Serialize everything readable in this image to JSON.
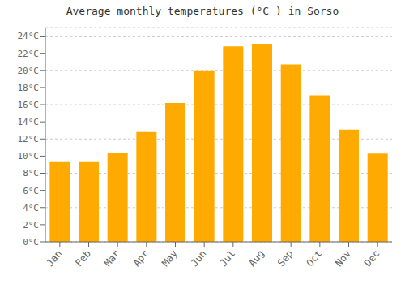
{
  "chart_data": {
    "type": "bar",
    "title": "Average monthly temperatures (°C ) in Sorso",
    "categories": [
      "Jan",
      "Feb",
      "Mar",
      "Apr",
      "May",
      "Jun",
      "Jul",
      "Aug",
      "Sep",
      "Oct",
      "Nov",
      "Dec"
    ],
    "values": [
      9.3,
      9.3,
      10.4,
      12.8,
      16.2,
      20.0,
      22.8,
      23.1,
      20.7,
      17.1,
      13.1,
      10.3
    ],
    "color": "#FFAA00",
    "ylim": [
      0,
      25
    ],
    "yticks": [
      {
        "value": 0,
        "label": "0°C"
      },
      {
        "value": 2,
        "label": "2°C"
      },
      {
        "value": 4,
        "label": "4°C"
      },
      {
        "value": 6,
        "label": "6°C"
      },
      {
        "value": 8,
        "label": "8°C"
      },
      {
        "value": 10,
        "label": "10°C"
      },
      {
        "value": 12,
        "label": "12°C"
      },
      {
        "value": 14,
        "label": "14°C"
      },
      {
        "value": 16,
        "label": "16°C"
      },
      {
        "value": 18,
        "label": "18°C"
      },
      {
        "value": 20,
        "label": "20°C"
      },
      {
        "value": 22,
        "label": "22°C"
      },
      {
        "value": 24,
        "label": "24°C"
      }
    ],
    "grid": true
  }
}
